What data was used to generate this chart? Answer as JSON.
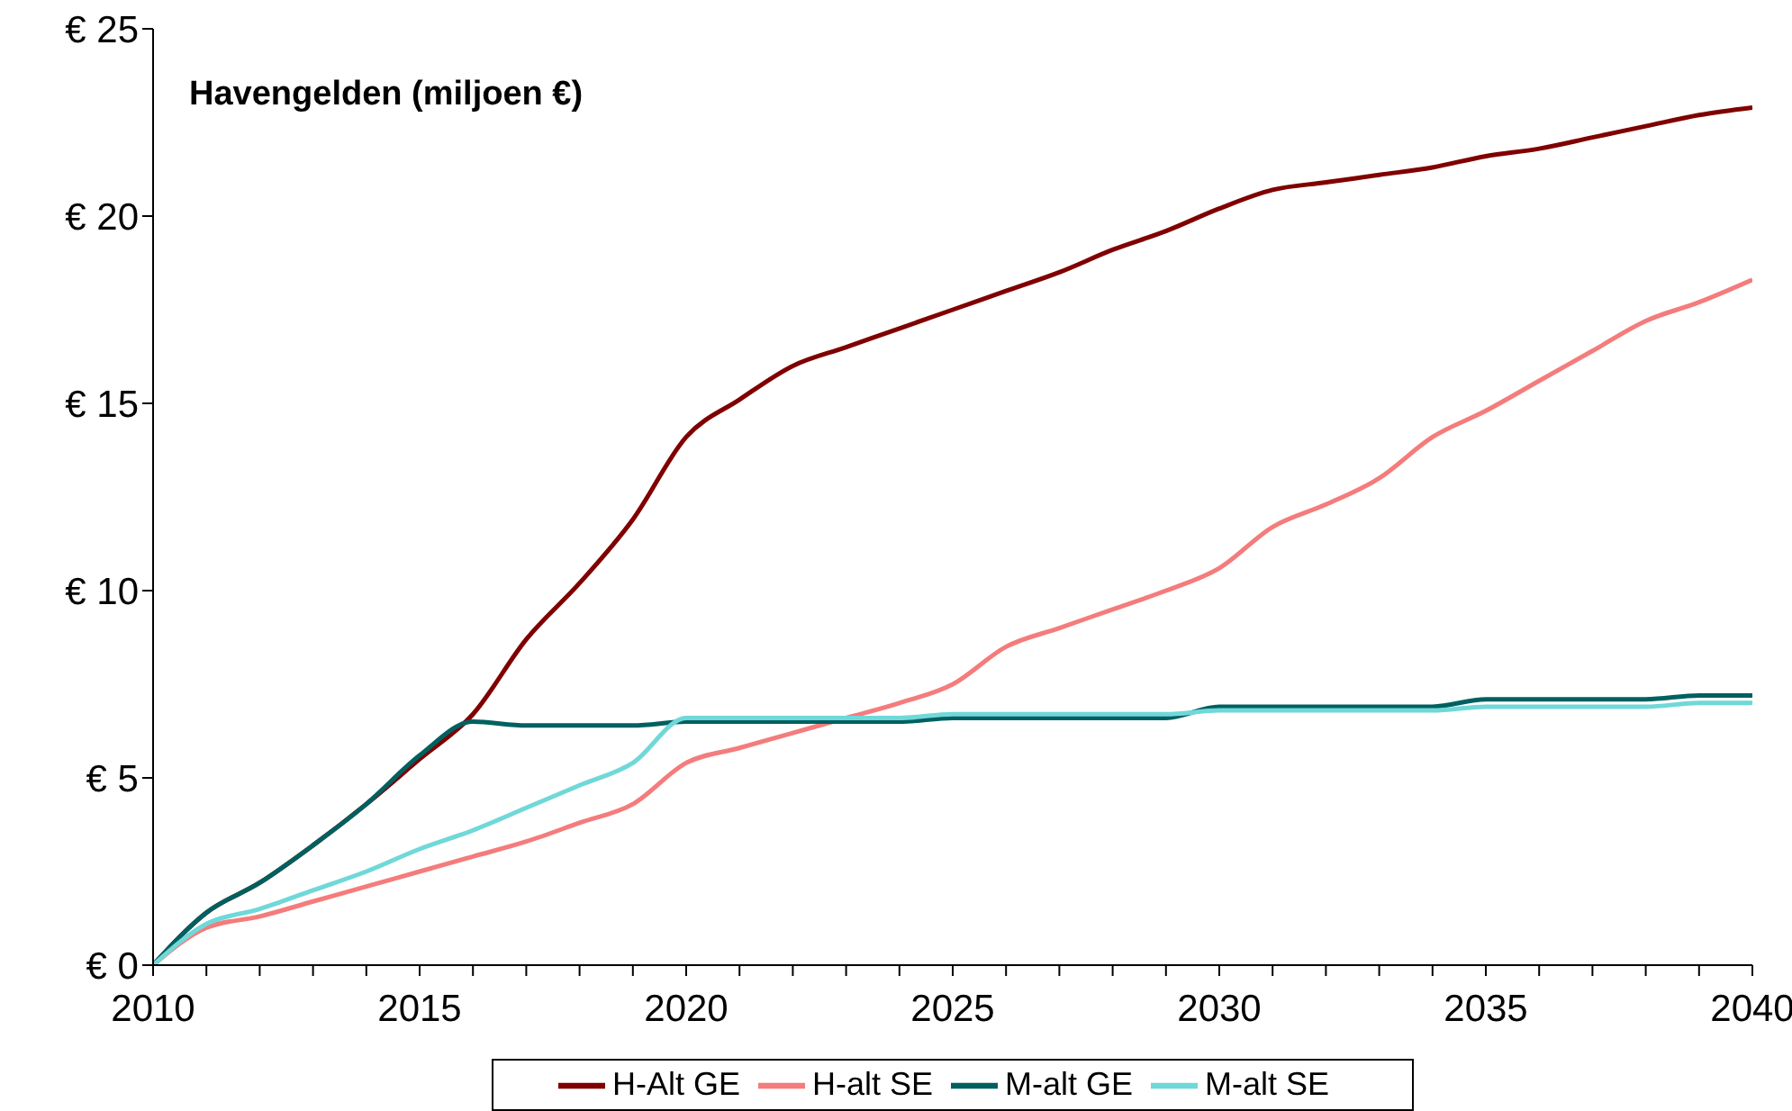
{
  "chart_data": {
    "type": "line",
    "title": "Havengelden (miljoen €)",
    "x": [
      2010,
      2011,
      2012,
      2013,
      2014,
      2015,
      2016,
      2017,
      2018,
      2019,
      2020,
      2021,
      2022,
      2023,
      2024,
      2025,
      2026,
      2027,
      2028,
      2029,
      2030,
      2031,
      2032,
      2033,
      2034,
      2035,
      2036,
      2037,
      2038,
      2039,
      2040
    ],
    "series": [
      {
        "name": "H-Alt GE",
        "color": "#800000",
        "values": [
          0,
          1.4,
          2.2,
          3.2,
          4.3,
          5.5,
          6.7,
          8.7,
          10.2,
          11.9,
          14.1,
          15.1,
          16.0,
          16.5,
          17.0,
          17.5,
          18.0,
          18.5,
          19.1,
          19.6,
          20.2,
          20.7,
          20.9,
          21.1,
          21.3,
          21.6,
          21.8,
          22.1,
          22.4,
          22.7,
          22.9
        ]
      },
      {
        "name": "H-alt SE",
        "color": "#f47c7c",
        "values": [
          0,
          1.0,
          1.3,
          1.7,
          2.1,
          2.5,
          2.9,
          3.3,
          3.8,
          4.3,
          5.4,
          5.8,
          6.2,
          6.6,
          7.0,
          7.5,
          8.5,
          9.0,
          9.5,
          10.0,
          10.6,
          11.7,
          12.3,
          13.0,
          14.1,
          14.8,
          15.6,
          16.4,
          17.2,
          17.7,
          18.3
        ]
      },
      {
        "name": "M-alt GE",
        "color": "#006060",
        "values": [
          0,
          1.4,
          2.2,
          3.2,
          4.3,
          5.6,
          6.5,
          6.4,
          6.4,
          6.4,
          6.5,
          6.5,
          6.5,
          6.5,
          6.5,
          6.6,
          6.6,
          6.6,
          6.6,
          6.6,
          6.9,
          6.9,
          6.9,
          6.9,
          6.9,
          7.1,
          7.1,
          7.1,
          7.1,
          7.2,
          7.2
        ]
      },
      {
        "name": "M-alt SE",
        "color": "#70d8d8",
        "values": [
          0,
          1.1,
          1.5,
          2.0,
          2.5,
          3.1,
          3.6,
          4.2,
          4.8,
          5.4,
          6.6,
          6.6,
          6.6,
          6.6,
          6.6,
          6.7,
          6.7,
          6.7,
          6.7,
          6.7,
          6.8,
          6.8,
          6.8,
          6.8,
          6.8,
          6.9,
          6.9,
          6.9,
          6.9,
          7.0,
          7.0
        ]
      }
    ],
    "xlim": [
      2010,
      2040
    ],
    "xticks": [
      2010,
      {
        "value": 2011,
        "label": null
      },
      {
        "value": 2012,
        "label": null
      },
      {
        "value": 2013,
        "label": null
      },
      {
        "value": 2014,
        "label": null
      },
      2015,
      {
        "value": 2016,
        "label": null
      },
      {
        "value": 2017,
        "label": null
      },
      {
        "value": 2018,
        "label": null
      },
      {
        "value": 2019,
        "label": null
      },
      2020,
      {
        "value": 2021,
        "label": null
      },
      {
        "value": 2022,
        "label": null
      },
      {
        "value": 2023,
        "label": null
      },
      {
        "value": 2024,
        "label": null
      },
      2025,
      {
        "value": 2026,
        "label": null
      },
      {
        "value": 2027,
        "label": null
      },
      {
        "value": 2028,
        "label": null
      },
      {
        "value": 2029,
        "label": null
      },
      2030,
      {
        "value": 2031,
        "label": null
      },
      {
        "value": 2032,
        "label": null
      },
      {
        "value": 2033,
        "label": null
      },
      {
        "value": 2034,
        "label": null
      },
      2035,
      {
        "value": 2036,
        "label": null
      },
      {
        "value": 2037,
        "label": null
      },
      {
        "value": 2038,
        "label": null
      },
      {
        "value": 2039,
        "label": null
      },
      2040
    ],
    "ylim": [
      0,
      25
    ],
    "yticks": [
      {
        "value": 0,
        "label": "€ 0"
      },
      {
        "value": 5,
        "label": "€ 5"
      },
      {
        "value": 10,
        "label": "€ 10"
      },
      {
        "value": 15,
        "label": "€ 15"
      },
      {
        "value": 20,
        "label": "€ 20"
      },
      {
        "value": 25,
        "label": "€ 25"
      }
    ],
    "grid": false,
    "legend": "bottom",
    "marker": "none",
    "line_style": "solid"
  }
}
